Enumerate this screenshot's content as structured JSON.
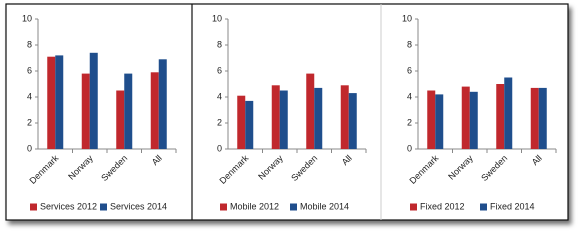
{
  "chart_data": [
    {
      "type": "bar",
      "categories": [
        "Denmark",
        "Norway",
        "Sweden",
        "All"
      ],
      "series": [
        {
          "name": "Services 2012",
          "color": "#c0282d",
          "values": [
            7.1,
            5.8,
            4.5,
            5.9
          ]
        },
        {
          "name": "Services 2014",
          "color": "#1f4e8c",
          "values": [
            7.2,
            7.4,
            5.8,
            6.9
          ]
        }
      ],
      "ylim": [
        0,
        10
      ],
      "yticks": [
        0,
        2,
        4,
        6,
        8,
        10
      ],
      "legend": "bottom"
    },
    {
      "type": "bar",
      "categories": [
        "Denmark",
        "Norway",
        "Sweden",
        "All"
      ],
      "series": [
        {
          "name": "Mobile 2012",
          "color": "#c0282d",
          "values": [
            4.1,
            4.9,
            5.8,
            4.9
          ]
        },
        {
          "name": "Mobile 2014",
          "color": "#1f4e8c",
          "values": [
            3.7,
            4.5,
            4.7,
            4.3
          ]
        }
      ],
      "ylim": [
        0,
        10
      ],
      "yticks": [
        0,
        2,
        4,
        6,
        8,
        10
      ],
      "legend": "bottom"
    },
    {
      "type": "bar",
      "categories": [
        "Denmark",
        "Norway",
        "Sweden",
        "All"
      ],
      "series": [
        {
          "name": "Fixed 2012",
          "color": "#c0282d",
          "values": [
            4.5,
            4.8,
            5.0,
            4.7
          ]
        },
        {
          "name": "Fixed 2014",
          "color": "#1f4e8c",
          "values": [
            4.2,
            4.4,
            5.5,
            4.7
          ]
        }
      ],
      "ylim": [
        0,
        10
      ],
      "yticks": [
        0,
        2,
        4,
        6,
        8,
        10
      ],
      "legend": "bottom"
    }
  ]
}
